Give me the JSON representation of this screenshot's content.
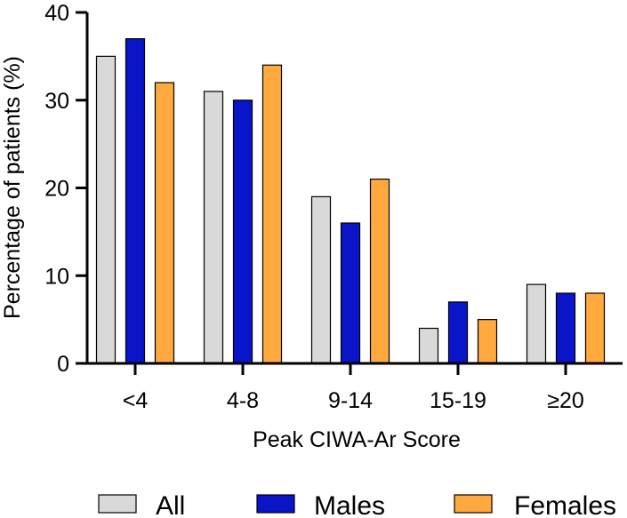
{
  "chart_data": {
    "type": "bar",
    "title": "",
    "xlabel": "Peak CIWA-Ar Score",
    "ylabel": "Percentage of patients (%)",
    "ylim": [
      0,
      40
    ],
    "yticks": [
      0,
      10,
      20,
      30,
      40
    ],
    "ytick_labels": [
      "0",
      "10",
      "20",
      "30",
      "40"
    ],
    "categories": [
      "<4",
      "4-8",
      "9-14",
      "15-19",
      "≥20"
    ],
    "series": [
      {
        "name": "All",
        "color": "#d9d9d9",
        "values": [
          35,
          31,
          19,
          4,
          9
        ]
      },
      {
        "name": "Males",
        "color": "#0a14c8",
        "values": [
          37,
          30,
          16,
          7,
          8
        ]
      },
      {
        "name": "Females",
        "color": "#ffa93f",
        "values": [
          32,
          34,
          21,
          5,
          8
        ]
      }
    ],
    "grid": false,
    "legend_position": "bottom"
  }
}
